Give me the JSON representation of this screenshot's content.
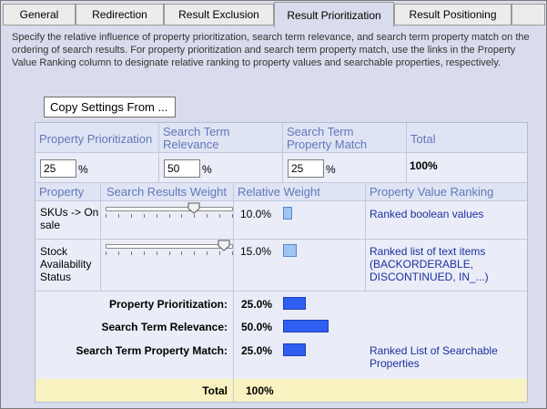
{
  "tabs": [
    {
      "label": "General",
      "active": false
    },
    {
      "label": "Redirection",
      "active": false
    },
    {
      "label": "Result Exclusion",
      "active": false
    },
    {
      "label": "Result Prioritization",
      "active": true
    },
    {
      "label": "Result Positioning",
      "active": false
    }
  ],
  "description": "Specify the relative influence of property prioritization, search term relevance, and search term property match on the ordering of search results. For property prioritization and search term property match, use the links in the Property Value Ranking column to designate relative ranking to property values and searchable properties, respectively.",
  "copy_settings_label": "Copy Settings From ...",
  "weights_header": {
    "property_prioritization": "Property Prioritization",
    "search_term_relevance": "Search Term Relevance",
    "search_term_property_match": "Search Term Property Match",
    "total": "Total"
  },
  "weights": {
    "property_prioritization": "25",
    "search_term_relevance": "50",
    "search_term_property_match": "25",
    "percent_sign": "%",
    "total": "100%"
  },
  "property_header": {
    "property": "Property",
    "search_results_weight": "Search Results Weight",
    "relative_weight": "Relative Weight",
    "property_value_ranking": "Property Value Ranking"
  },
  "properties": [
    {
      "name": "SKUs -> On sale",
      "slider_fraction": 0.69,
      "relative_weight": "10.0%",
      "relative_weight_value": 10.0,
      "ranking_link": "Ranked boolean values"
    },
    {
      "name": "Stock Availability Status",
      "slider_fraction": 0.93,
      "relative_weight": "15.0%",
      "relative_weight_value": 15.0,
      "ranking_link": "Ranked list of text items (BACKORDERABLE, DISCONTINUED, IN_...)"
    }
  ],
  "summary": [
    {
      "label": "Property Prioritization:",
      "value": "25.0%",
      "value_num": 25.0
    },
    {
      "label": "Search Term Relevance:",
      "value": "50.0%",
      "value_num": 50.0
    },
    {
      "label": "Search Term Property Match:",
      "value": "25.0%",
      "value_num": 25.0,
      "link": "Ranked List of Searchable Properties"
    }
  ],
  "total": {
    "label": "Total",
    "value": "100%"
  },
  "colors": {
    "header_text": "#6277b8",
    "link": "#1d2fa0",
    "bar_dark": "#2f5ef2",
    "bar_light": "#9ec6f2",
    "total_row_bg": "#f7f2c0"
  }
}
